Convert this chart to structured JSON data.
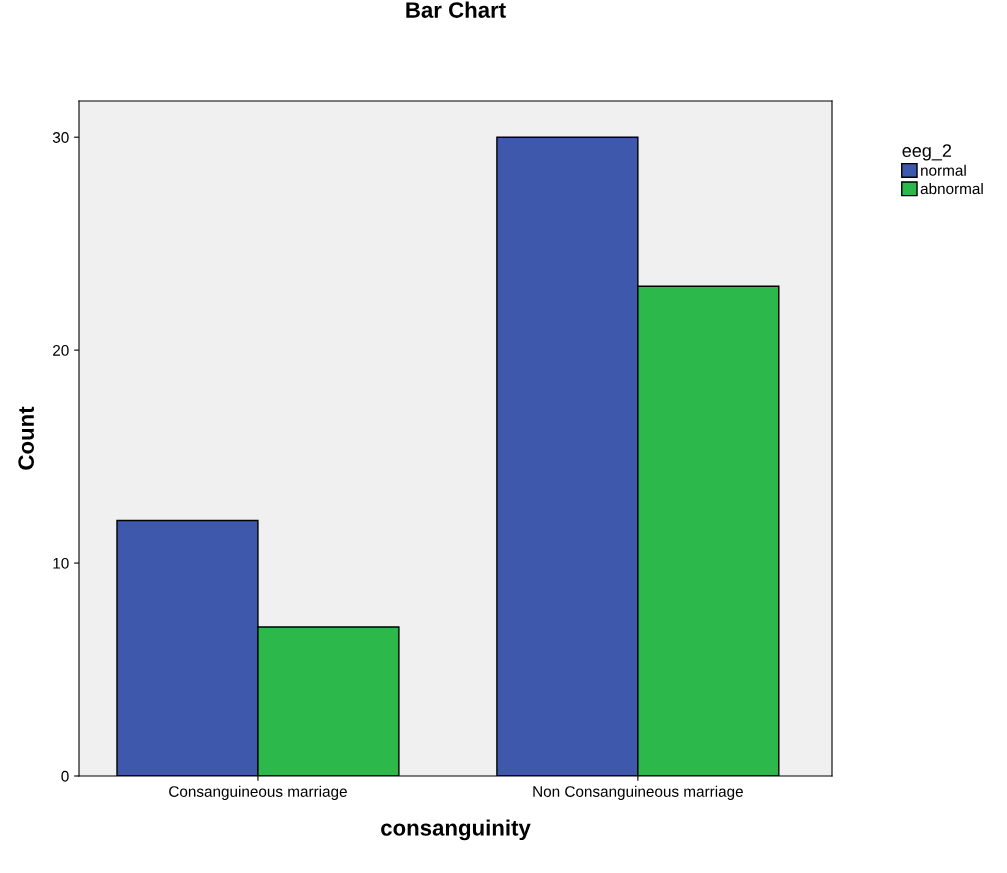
{
  "chart_data": {
    "type": "bar",
    "title": "Bar Chart",
    "xlabel": "consanguinity",
    "ylabel": "Count",
    "legend_title": "eeg_2",
    "categories": [
      "Consanguineous marriage",
      "Non Consanguineous marriage"
    ],
    "series": [
      {
        "name": "normal",
        "color": "#3e58ac",
        "values": [
          12,
          30
        ]
      },
      {
        "name": "abnormal",
        "color": "#2db84b",
        "values": [
          7,
          23
        ]
      }
    ],
    "ylim": [
      0,
      31.7
    ],
    "yticks": [
      0,
      10,
      20,
      30
    ],
    "grid": false,
    "legend": "top right"
  }
}
